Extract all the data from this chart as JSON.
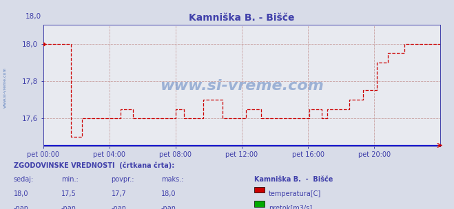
{
  "title": "Kamniška B. - Bišče",
  "title_color": "#4040aa",
  "bg_color": "#d8dce8",
  "plot_bg_color": "#e8eaf0",
  "grid_color": "#c0a0a0",
  "watermark": "www.si-vreme.com",
  "ylim": [
    17.45,
    18.1
  ],
  "yticks": [
    17.6,
    17.8,
    18.0
  ],
  "ytick_labels": [
    "17,6",
    "17,8",
    "18,0"
  ],
  "xlim": [
    0,
    288
  ],
  "xtick_positions": [
    0,
    48,
    96,
    144,
    192,
    240
  ],
  "xtick_labels": [
    "pet 00:00",
    "pet 04:00",
    "pet 08:00",
    "pet 12:00",
    "pet 16:00",
    "pet 20:00"
  ],
  "temp_color": "#cc0000",
  "temp_data": [
    [
      0,
      18.0
    ],
    [
      20,
      18.0
    ],
    [
      20,
      17.5
    ],
    [
      28,
      17.5
    ],
    [
      28,
      17.6
    ],
    [
      56,
      17.6
    ],
    [
      56,
      17.65
    ],
    [
      65,
      17.65
    ],
    [
      65,
      17.6
    ],
    [
      96,
      17.6
    ],
    [
      96,
      17.65
    ],
    [
      102,
      17.65
    ],
    [
      102,
      17.6
    ],
    [
      116,
      17.6
    ],
    [
      116,
      17.7
    ],
    [
      130,
      17.7
    ],
    [
      130,
      17.6
    ],
    [
      147,
      17.6
    ],
    [
      147,
      17.65
    ],
    [
      158,
      17.65
    ],
    [
      158,
      17.6
    ],
    [
      193,
      17.6
    ],
    [
      193,
      17.65
    ],
    [
      202,
      17.65
    ],
    [
      202,
      17.6
    ],
    [
      206,
      17.6
    ],
    [
      206,
      17.65
    ],
    [
      222,
      17.65
    ],
    [
      222,
      17.7
    ],
    [
      232,
      17.7
    ],
    [
      232,
      17.75
    ],
    [
      242,
      17.75
    ],
    [
      242,
      17.9
    ],
    [
      250,
      17.9
    ],
    [
      250,
      17.95
    ],
    [
      262,
      17.95
    ],
    [
      262,
      18.0
    ],
    [
      288,
      18.0
    ]
  ],
  "legend_title": "Kamniška B.  -  Bišče",
  "legend_items": [
    {
      "label": "temperatura[C]",
      "color": "#cc0000"
    },
    {
      "label": "pretok[m3/s]",
      "color": "#00aa00"
    }
  ],
  "table_headers": [
    "sedaj:",
    "min.:",
    "povpr.:",
    "maks.:"
  ],
  "table_data": [
    [
      "18,0",
      "17,5",
      "17,7",
      "18,0"
    ],
    [
      "-nan",
      "-nan",
      "-nan",
      "-nan"
    ]
  ],
  "footer_text": "ZGODOVINSKE VREDNOSTI  (črtkana črta):",
  "watermark_color": "#2255aa",
  "axis_color": "#4040aa",
  "tick_color": "#4040aa",
  "font_color": "#4040aa"
}
